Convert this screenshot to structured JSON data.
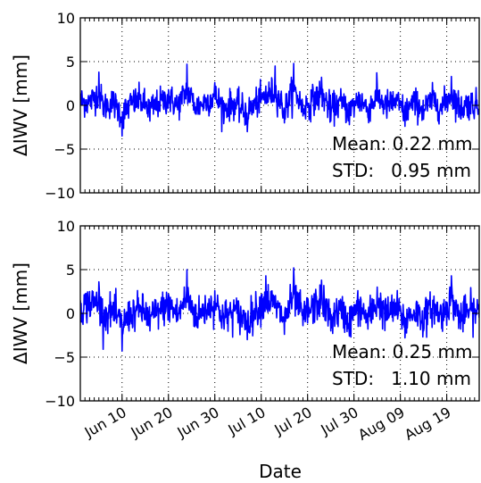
{
  "chart_data": {
    "type": "line",
    "xlabel": "Date",
    "x_tick_labels": [
      "Jun 10",
      "Jun 20",
      "Jun 30",
      "Jul 10",
      "Jul 20",
      "Jul 30",
      "Aug 09",
      "Aug 19"
    ],
    "x_range": [
      "2017-06-01",
      "2017-08-26"
    ],
    "grid": true,
    "line_color": "#0000ff",
    "panels": [
      {
        "ylabel": "ΔIWV [mm]",
        "ylim": [
          -10,
          10
        ],
        "y_ticks": [
          "10",
          "5",
          "0",
          "−5",
          "−10"
        ],
        "annotations": [
          "Mean: 0.22 mm",
          "STD:   0.95 mm"
        ],
        "mean": 0.22,
        "std": 0.95,
        "series": [
          {
            "x": "2017-06-01",
            "y": 1.0
          },
          {
            "x": "2017-06-03",
            "y": 0.5
          },
          {
            "x": "2017-06-05",
            "y": 3.8
          },
          {
            "x": "2017-06-06",
            "y": -0.8
          },
          {
            "x": "2017-06-08",
            "y": 0.6
          },
          {
            "x": "2017-06-10",
            "y": -3.5
          },
          {
            "x": "2017-06-12",
            "y": 0.2
          },
          {
            "x": "2017-06-14",
            "y": 1.2
          },
          {
            "x": "2017-06-16",
            "y": -1.8
          },
          {
            "x": "2017-06-18",
            "y": 0.4
          },
          {
            "x": "2017-06-20",
            "y": 1.8
          },
          {
            "x": "2017-06-22",
            "y": -0.5
          },
          {
            "x": "2017-06-24",
            "y": 4.7
          },
          {
            "x": "2017-06-26",
            "y": -1.0
          },
          {
            "x": "2017-06-28",
            "y": 0.8
          },
          {
            "x": "2017-06-30",
            "y": 2.6
          },
          {
            "x": "2017-07-02",
            "y": -1.5
          },
          {
            "x": "2017-07-04",
            "y": 0.3
          },
          {
            "x": "2017-07-07",
            "y": -3.0
          },
          {
            "x": "2017-07-09",
            "y": 0.6
          },
          {
            "x": "2017-07-11",
            "y": 2.2
          },
          {
            "x": "2017-07-13",
            "y": 4.5
          },
          {
            "x": "2017-07-15",
            "y": -2.0
          },
          {
            "x": "2017-07-17",
            "y": 4.8
          },
          {
            "x": "2017-07-19",
            "y": -1.2
          },
          {
            "x": "2017-07-21",
            "y": 1.0
          },
          {
            "x": "2017-07-23",
            "y": 3.2
          },
          {
            "x": "2017-07-25",
            "y": -1.8
          },
          {
            "x": "2017-07-27",
            "y": 0.5
          },
          {
            "x": "2017-07-29",
            "y": -2.2
          },
          {
            "x": "2017-07-31",
            "y": 1.5
          },
          {
            "x": "2017-08-02",
            "y": -1.4
          },
          {
            "x": "2017-08-04",
            "y": 2.4
          },
          {
            "x": "2017-08-06",
            "y": -0.6
          },
          {
            "x": "2017-08-08",
            "y": 0.9
          },
          {
            "x": "2017-08-10",
            "y": -2.4
          },
          {
            "x": "2017-08-12",
            "y": 0.4
          },
          {
            "x": "2017-08-14",
            "y": -1.6
          },
          {
            "x": "2017-08-16",
            "y": 1.2
          },
          {
            "x": "2017-08-18",
            "y": -1.0
          },
          {
            "x": "2017-08-20",
            "y": 3.3
          },
          {
            "x": "2017-08-22",
            "y": -1.5
          },
          {
            "x": "2017-08-24",
            "y": 0.4
          },
          {
            "x": "2017-08-26",
            "y": -0.8
          }
        ]
      },
      {
        "ylabel": "ΔIWV [mm]",
        "ylim": [
          -10,
          10
        ],
        "y_ticks": [
          "10",
          "5",
          "0",
          "−5",
          "−10"
        ],
        "annotations": [
          "Mean: 0.25 mm",
          "STD:   1.10 mm"
        ],
        "mean": 0.25,
        "std": 1.1,
        "series": [
          {
            "x": "2017-06-01",
            "y": 1.5
          },
          {
            "x": "2017-06-03",
            "y": 2.5
          },
          {
            "x": "2017-06-05",
            "y": 3.6
          },
          {
            "x": "2017-06-06",
            "y": -1.2
          },
          {
            "x": "2017-06-08",
            "y": 0.3
          },
          {
            "x": "2017-06-10",
            "y": -4.3
          },
          {
            "x": "2017-06-12",
            "y": -0.5
          },
          {
            "x": "2017-06-14",
            "y": 0.8
          },
          {
            "x": "2017-06-16",
            "y": -2.0
          },
          {
            "x": "2017-06-18",
            "y": 0.5
          },
          {
            "x": "2017-06-20",
            "y": 2.2
          },
          {
            "x": "2017-06-22",
            "y": -0.8
          },
          {
            "x": "2017-06-24",
            "y": 5.0
          },
          {
            "x": "2017-06-26",
            "y": -1.4
          },
          {
            "x": "2017-06-28",
            "y": 1.0
          },
          {
            "x": "2017-06-30",
            "y": 2.6
          },
          {
            "x": "2017-07-02",
            "y": -1.8
          },
          {
            "x": "2017-07-04",
            "y": 0.2
          },
          {
            "x": "2017-07-07",
            "y": -3.0
          },
          {
            "x": "2017-07-09",
            "y": 0.8
          },
          {
            "x": "2017-07-11",
            "y": 4.3
          },
          {
            "x": "2017-07-13",
            "y": 2.0
          },
          {
            "x": "2017-07-15",
            "y": -2.4
          },
          {
            "x": "2017-07-17",
            "y": 5.2
          },
          {
            "x": "2017-07-19",
            "y": -1.4
          },
          {
            "x": "2017-07-21",
            "y": 1.2
          },
          {
            "x": "2017-07-23",
            "y": 3.8
          },
          {
            "x": "2017-07-25",
            "y": -2.0
          },
          {
            "x": "2017-07-27",
            "y": 0.3
          },
          {
            "x": "2017-07-29",
            "y": -2.6
          },
          {
            "x": "2017-07-31",
            "y": 1.6
          },
          {
            "x": "2017-08-02",
            "y": -1.8
          },
          {
            "x": "2017-08-04",
            "y": 3.0
          },
          {
            "x": "2017-08-06",
            "y": -0.8
          },
          {
            "x": "2017-08-08",
            "y": 1.2
          },
          {
            "x": "2017-08-10",
            "y": -2.8
          },
          {
            "x": "2017-08-12",
            "y": 0.2
          },
          {
            "x": "2017-08-14",
            "y": -2.0
          },
          {
            "x": "2017-08-16",
            "y": 1.5
          },
          {
            "x": "2017-08-18",
            "y": -1.2
          },
          {
            "x": "2017-08-20",
            "y": 4.3
          },
          {
            "x": "2017-08-22",
            "y": -1.8
          },
          {
            "x": "2017-08-24",
            "y": 0.6
          },
          {
            "x": "2017-08-26",
            "y": -0.5
          }
        ]
      }
    ]
  }
}
